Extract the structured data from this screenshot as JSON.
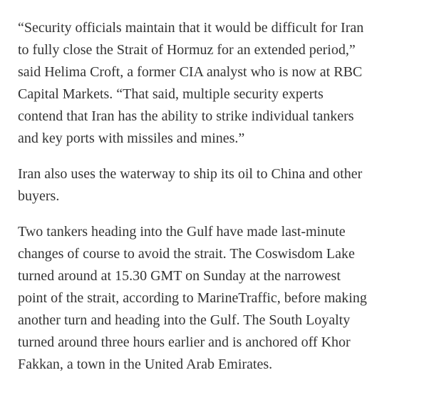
{
  "article": {
    "paragraphs": [
      {
        "lines": [
          "“Security officials maintain that it would be difficult for Iran",
          "to fully close the Strait of Hormuz for an extended period,”",
          "said Helima Croft, a former CIA analyst who is now at RBC",
          "Capital Markets. “That said, multiple security experts",
          "contend that Iran has the ability to strike individual tankers",
          "and key ports with missiles and mines.”"
        ]
      },
      {
        "lines": [
          "Iran also uses the waterway to ship its oil to China and other",
          "buyers."
        ]
      },
      {
        "lines": [
          "Two tankers heading into the Gulf have made last-minute",
          "changes of course to avoid the strait. The Coswisdom Lake",
          "turned around at 15.30 GMT on Sunday at the narrowest",
          "point of the strait, according to MarineTraffic, before making",
          "another turn and heading into the Gulf. The South Loyalty",
          "turned around three hours earlier and is anchored off Khor",
          "Fakkan, a town in the United Arab Emirates."
        ]
      }
    ]
  }
}
